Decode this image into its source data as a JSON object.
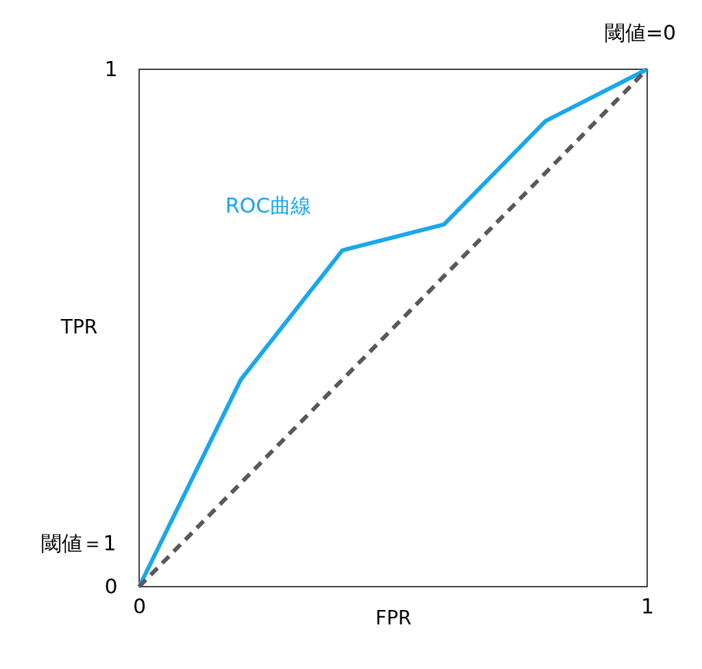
{
  "chart_data": {
    "type": "line",
    "xlabel": "FPR",
    "ylabel": "TPR",
    "xlim": [
      0,
      1
    ],
    "ylim": [
      0,
      1
    ],
    "xticks": [
      0,
      1
    ],
    "yticks": [
      0,
      1
    ],
    "series": [
      {
        "name": "ROC曲線",
        "color": "#1aa7ec",
        "x": [
          0,
          0.2,
          0.4,
          0.6,
          0.8,
          1
        ],
        "values": [
          0,
          0.4,
          0.65,
          0.7,
          0.9,
          1
        ],
        "line_style": "solid"
      },
      {
        "color": "#595959",
        "x": [
          0,
          1
        ],
        "values": [
          0,
          1
        ],
        "line_style": "dashed"
      }
    ],
    "annotations": [
      {
        "text": "閾値=0",
        "x": 1,
        "y": 1
      },
      {
        "text": "閾値＝1",
        "x": 0,
        "y": 0
      }
    ]
  }
}
